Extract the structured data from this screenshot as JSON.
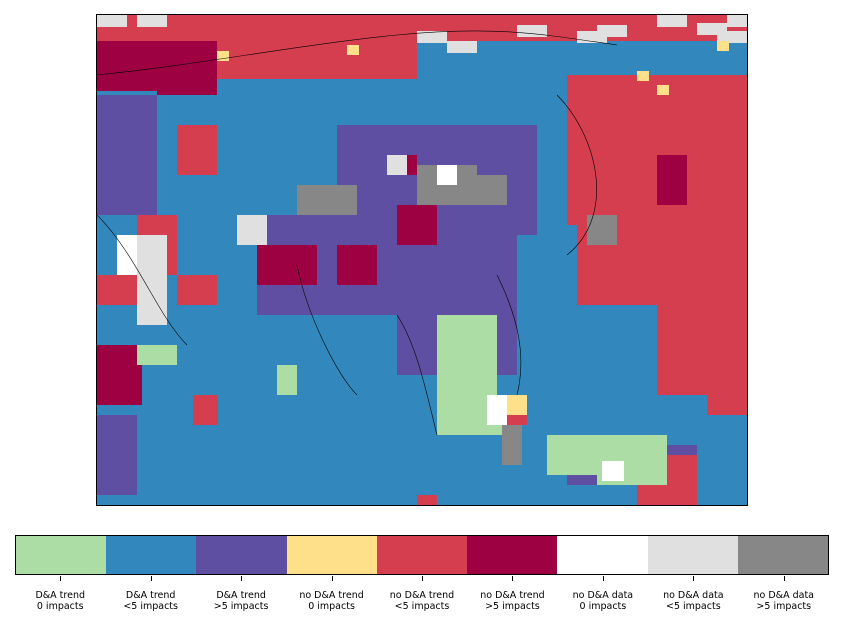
{
  "legend": {
    "items": [
      {
        "label": "D&A trend\n0 impacts",
        "color": "#abdda4"
      },
      {
        "label": "D&A trend\n<5 impacts",
        "color": "#3288bd"
      },
      {
        "label": "D&A trend\n>5 impacts",
        "color": "#5e4fa2"
      },
      {
        "label": "no D&A trend\n0 impacts",
        "color": "#fee08b"
      },
      {
        "label": "no D&A trend\n<5 impacts",
        "color": "#d53e4f"
      },
      {
        "label": "no D&A trend\n>5 impacts",
        "color": "#9e0142"
      },
      {
        "label": "no D&A data\n0 impacts",
        "color": "#ffffff"
      },
      {
        "label": "no D&A data\n<5 impacts",
        "color": "#e0e0e0"
      },
      {
        "label": "no D&A data\n>5 impacts",
        "color": "#878787"
      }
    ]
  }
}
